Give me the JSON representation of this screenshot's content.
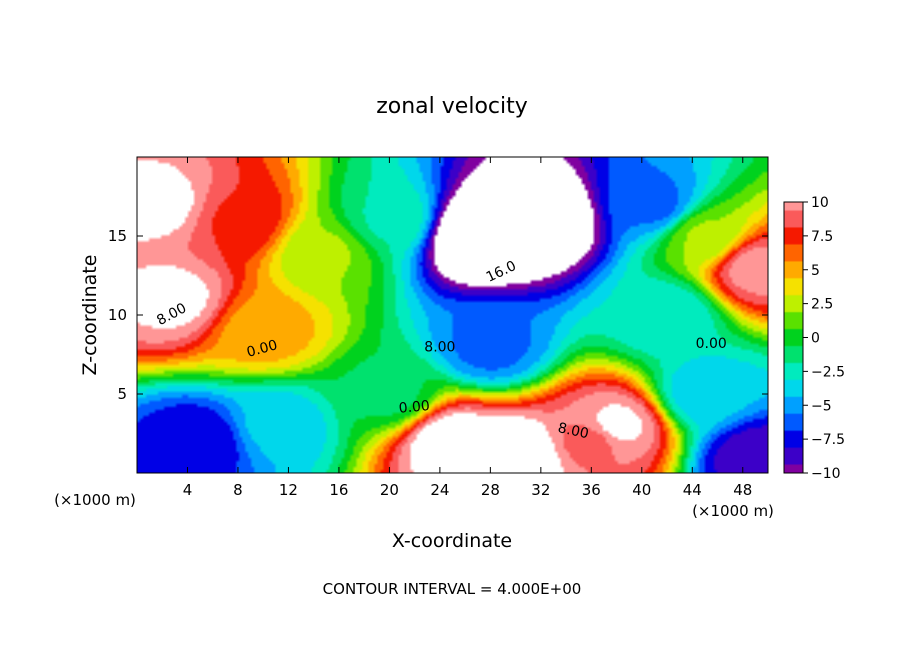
{
  "chart_data": {
    "type": "heatmap",
    "title": "zonal velocity",
    "xlabel": "X-coordinate",
    "ylabel": "Z-coordinate",
    "x_unit_label": "(×1000 m)",
    "xlim": [
      0,
      50
    ],
    "ylim": [
      0,
      20
    ],
    "x_ticks": [
      4,
      8,
      12,
      16,
      20,
      24,
      28,
      32,
      36,
      40,
      44,
      48
    ],
    "y_ticks": [
      5,
      10,
      15
    ],
    "colorbar": {
      "range": [
        -10,
        10
      ],
      "ticks": [
        "10",
        "7.5",
        "5",
        "2.5",
        "0",
        "−2.5",
        "−5",
        "−7.5",
        "−10"
      ]
    },
    "contour_labels": [
      "8.00",
      "0.00",
      "8.00",
      "0.00",
      "8.00",
      "16.0",
      "0.00"
    ],
    "footer": "CONTOUR INTERVAL = 4.000E+00",
    "field_features": [
      {
        "x": 2,
        "z": 17,
        "value": 11
      },
      {
        "x": 3,
        "z": 11,
        "value": 11
      },
      {
        "x": 8,
        "z": 16,
        "value": 8
      },
      {
        "x": 10,
        "z": 9,
        "value": 5
      },
      {
        "x": 15,
        "z": 14,
        "value": 2
      },
      {
        "x": 20,
        "z": 16,
        "value": -2
      },
      {
        "x": 27,
        "z": 15,
        "value": -15
      },
      {
        "x": 32,
        "z": 16,
        "value": -14
      },
      {
        "x": 28,
        "z": 8,
        "value": -6
      },
      {
        "x": 20,
        "z": 5,
        "value": -1
      },
      {
        "x": 25,
        "z": 2,
        "value": 12
      },
      {
        "x": 30,
        "z": 1,
        "value": 13
      },
      {
        "x": 36,
        "z": 2,
        "value": 9
      },
      {
        "x": 38,
        "z": 3,
        "value": 11
      },
      {
        "x": 5,
        "z": 2,
        "value": -8
      },
      {
        "x": 11,
        "z": 3,
        "value": -4
      },
      {
        "x": 45,
        "z": 5,
        "value": -4
      },
      {
        "x": 41,
        "z": 17,
        "value": -6
      },
      {
        "x": 45,
        "z": 15,
        "value": 2
      },
      {
        "x": 49,
        "z": 13,
        "value": 10
      },
      {
        "x": 49,
        "z": 1,
        "value": -9
      },
      {
        "x": 42,
        "z": 10,
        "value": -3
      }
    ]
  }
}
